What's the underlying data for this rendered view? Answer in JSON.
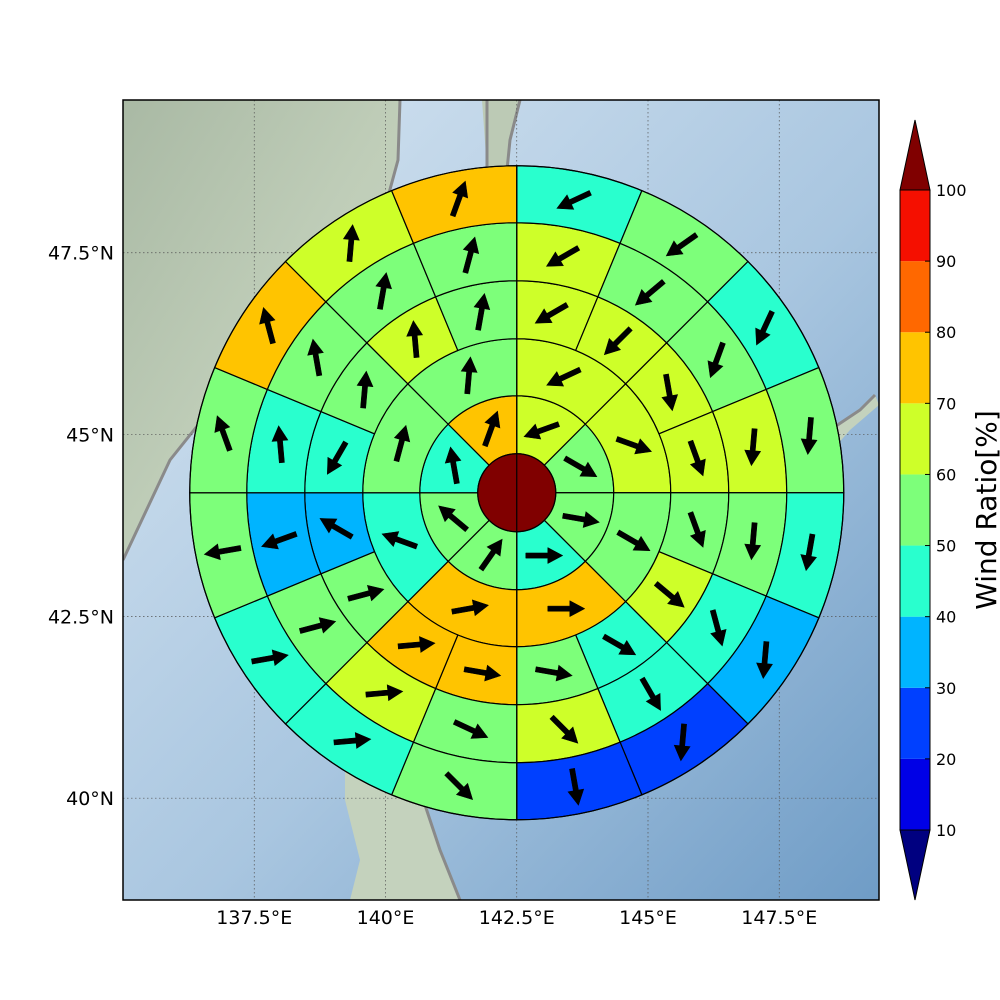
{
  "map": {
    "extent": {
      "lon": [
        135.0,
        149.4
      ],
      "lat": [
        38.6,
        49.6
      ]
    },
    "lat_ticks": [
      {
        "value": 47.5,
        "label": "47.5°N"
      },
      {
        "value": 45.0,
        "label": "45°N"
      },
      {
        "value": 42.5,
        "label": "42.5°N"
      },
      {
        "value": 40.0,
        "label": "40°N"
      }
    ],
    "lon_ticks": [
      {
        "value": 137.5,
        "label": "137.5°E"
      },
      {
        "value": 140.0,
        "label": "140°E"
      },
      {
        "value": 142.5,
        "label": "142.5°E"
      },
      {
        "value": 145.0,
        "label": "145°E"
      },
      {
        "value": 147.5,
        "label": "147.5°E"
      }
    ],
    "gridlines": true,
    "background": "shaded relief"
  },
  "rose": {
    "center": {
      "lon": 142.5,
      "lat": 44.2
    },
    "center_value": 100,
    "center_color": "#800000",
    "rings": [
      {
        "sectors": 8,
        "values": [
          65,
          55,
          55,
          45,
          55,
          55,
          45,
          75
        ],
        "arrows": [
          250,
          120,
          100,
          90,
          35,
          310,
          350,
          20
        ]
      },
      {
        "sectors": 8,
        "values": [
          65,
          65,
          55,
          75,
          75,
          45,
          55,
          55
        ],
        "arrows": [
          245,
          110,
          120,
          90,
          80,
          290,
          15,
          5
        ]
      },
      {
        "sectors": 16,
        "values": [
          65,
          65,
          65,
          65,
          55,
          65,
          45,
          55,
          75,
          75,
          55,
          35,
          45,
          55,
          65,
          55
        ],
        "arrows": [
          240,
          225,
          170,
          160,
          160,
          130,
          120,
          100,
          100,
          85,
          75,
          300,
          210,
          5,
          355,
          10
        ]
      },
      {
        "sectors": 16,
        "values": [
          65,
          55,
          55,
          65,
          55,
          45,
          45,
          65,
          55,
          65,
          55,
          35,
          45,
          55,
          55,
          55
        ],
        "arrows": [
          240,
          230,
          200,
          185,
          185,
          165,
          150,
          135,
          115,
          85,
          75,
          250,
          355,
          350,
          10,
          15
        ]
      },
      {
        "sectors": 16,
        "values": [
          45,
          55,
          45,
          55,
          45,
          35,
          25,
          25,
          55,
          45,
          45,
          55,
          55,
          75,
          65,
          75
        ],
        "arrows": [
          245,
          235,
          205,
          185,
          190,
          185,
          185,
          170,
          135,
          85,
          80,
          260,
          340,
          345,
          5,
          20
        ]
      },
      {
        "sectors": 24,
        "values": [
          45,
          35,
          35,
          45,
          45,
          35,
          25,
          15,
          15,
          25,
          25,
          45,
          45,
          55,
          65,
          55,
          55,
          45,
          45,
          55,
          75,
          75,
          65,
          65
        ],
        "arrows": [
          240,
          235,
          230,
          205,
          200,
          200,
          185,
          175,
          150,
          130,
          115,
          110,
          100,
          85,
          80,
          75,
          195,
          245,
          255,
          355,
          345,
          340,
          345,
          20
        ]
      }
    ]
  },
  "colorbar": {
    "title": "Wind Ratio[%]",
    "min": 0,
    "max": 110,
    "levels": [
      10,
      20,
      30,
      40,
      50,
      60,
      70,
      80,
      90,
      100
    ],
    "colors": [
      "#000080",
      "#0000e6",
      "#0040ff",
      "#00b4ff",
      "#29ffce",
      "#7dff7a",
      "#ceff29",
      "#ffc400",
      "#ff6800",
      "#f50f00",
      "#800000"
    ],
    "labels": [
      "10",
      "20",
      "30",
      "40",
      "50",
      "60",
      "70",
      "80",
      "90",
      "100"
    ]
  }
}
